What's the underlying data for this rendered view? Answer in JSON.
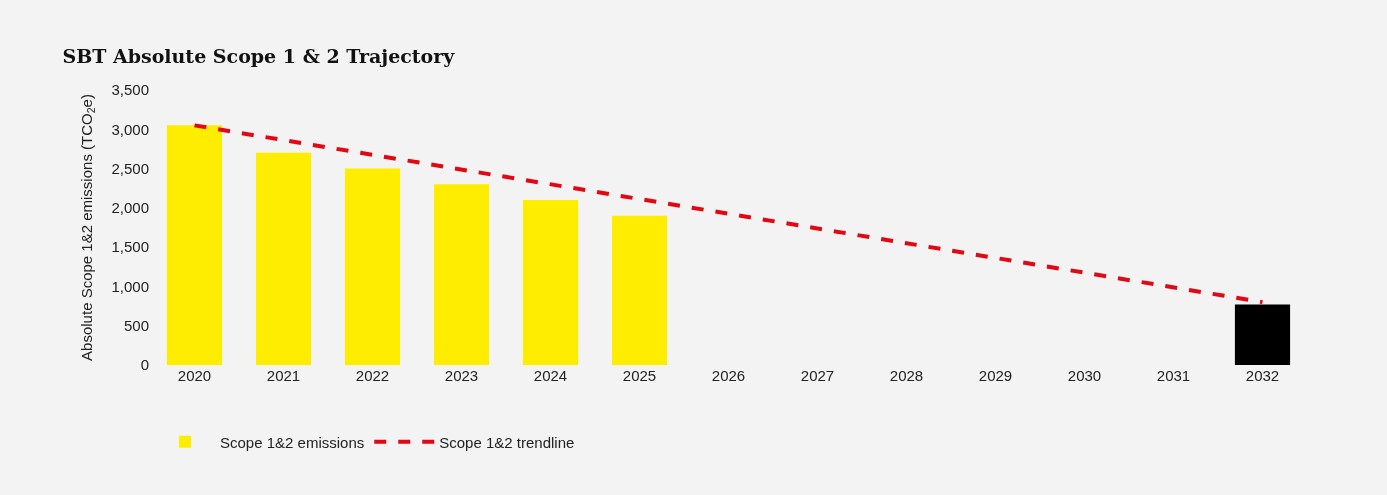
{
  "chart_data": {
    "type": "bar",
    "title": "SBT Absolute Scope 1 & 2 Trajectory",
    "ylabel": "Absolute Scope 1&2 emissions (TCO$_{2}$e)",
    "categories": [
      "2020",
      "2021",
      "2022",
      "2023",
      "2024",
      "2025",
      "2026",
      "2027",
      "2028",
      "2029",
      "2030",
      "2031",
      "2032"
    ],
    "series": [
      {
        "name": "Scope 1&2 emissions",
        "color": "#ffed00",
        "colors": [
          "#ffed00",
          "#ffed00",
          "#ffed00",
          "#ffed00",
          "#ffed00",
          "#ffed00",
          "#ffed00",
          "#ffed00",
          "#ffed00",
          "#ffed00",
          "#ffed00",
          "#ffed00",
          "#000000"
        ],
        "values": [
          3050,
          2700,
          2500,
          2300,
          2100,
          1900,
          null,
          null,
          null,
          null,
          null,
          null,
          770
        ]
      },
      {
        "name": "Scope 1&2 trendline",
        "type": "line",
        "color": "#e30613",
        "line_style": "dashed",
        "marker": "none",
        "values": [
          3050,
          null,
          null,
          null,
          null,
          null,
          null,
          null,
          null,
          null,
          null,
          null,
          800
        ]
      }
    ],
    "ylim": [
      0,
      3500
    ],
    "yticks": [
      {
        "value": 0,
        "label": "0"
      },
      {
        "value": 500,
        "label": "500"
      },
      {
        "value": 1000,
        "label": "1,000"
      },
      {
        "value": 1500,
        "label": "1,500"
      },
      {
        "value": 2000,
        "label": "2,000"
      },
      {
        "value": 2500,
        "label": "2,500"
      },
      {
        "value": 3000,
        "label": "3,000"
      },
      {
        "value": 3500,
        "label": "3,500"
      }
    ],
    "grid": false,
    "legend": "bottom left"
  }
}
